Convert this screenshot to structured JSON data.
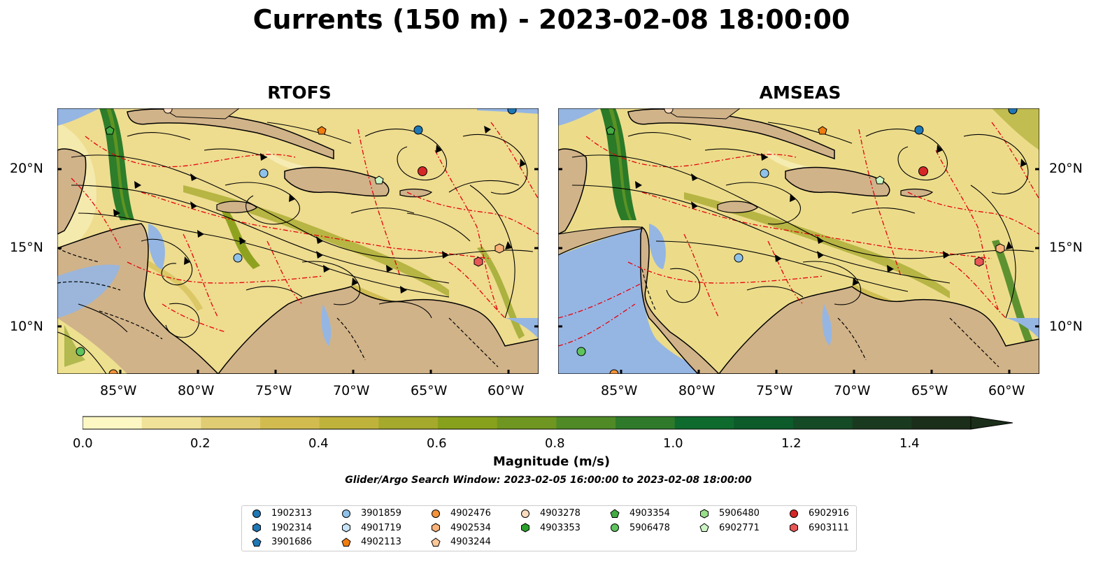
{
  "title": "Currents (150 m) - 2023-02-08 18:00:00",
  "panels": [
    {
      "title": "RTOFS"
    },
    {
      "title": "AMSEAS"
    }
  ],
  "lat_labels_left": [
    "20°N",
    "15°N",
    "10°N"
  ],
  "lat_labels_right": [
    "20°N",
    "15°N",
    "10°N"
  ],
  "lon_labels": [
    "85°W",
    "80°W",
    "75°W",
    "70°W",
    "65°W",
    "60°W"
  ],
  "colorbar": {
    "label": "Magnitude (m/s)",
    "ticks": [
      "0.0",
      "0.2",
      "0.4",
      "0.6",
      "0.8",
      "1.0",
      "1.2",
      "1.4"
    ],
    "colors": [
      "#fdf7c4",
      "#f1e29a",
      "#e0cc73",
      "#d2bc50",
      "#c0b33c",
      "#a5a92c",
      "#88a11c",
      "#6f9620",
      "#4f8a26",
      "#2f7a2a",
      "#0f6a2e",
      "#0d5a2a",
      "#154a26",
      "#1a3a20",
      "#1b2e1a"
    ]
  },
  "search_window": "Glider/Argo Search Window: 2023-02-05 16:00:00 to 2023-02-08 18:00:00",
  "colors": {
    "land": "#d1b389",
    "ocean": "#95b6e3",
    "eez": "#e8000b"
  },
  "legend": [
    {
      "label": "1902313",
      "shape": "circle",
      "color": "#1f77b4"
    },
    {
      "label": "1902314",
      "shape": "hexagon",
      "color": "#1f77b4"
    },
    {
      "label": "3901686",
      "shape": "pentagon",
      "color": "#1f77b4"
    },
    {
      "label": "3901859",
      "shape": "circle",
      "color": "#8fc2ea"
    },
    {
      "label": "4901719",
      "shape": "hexagon",
      "color": "#c6e3f7"
    },
    {
      "label": "4902113",
      "shape": "pentagon",
      "color": "#f07d0f"
    },
    {
      "label": "4902476",
      "shape": "circle",
      "color": "#f4933a"
    },
    {
      "label": "4902534",
      "shape": "hexagon",
      "color": "#f9b27a"
    },
    {
      "label": "4903244",
      "shape": "pentagon",
      "color": "#fcc797"
    },
    {
      "label": "4903278",
      "shape": "circle",
      "color": "#fcdcc0"
    },
    {
      "label": "4903353",
      "shape": "hexagon",
      "color": "#2ca02c"
    },
    {
      "label": "4903354",
      "shape": "pentagon",
      "color": "#43ab43"
    },
    {
      "label": "5906478",
      "shape": "circle",
      "color": "#5ec45e"
    },
    {
      "label": "5906480",
      "shape": "hexagon",
      "color": "#98df8a"
    },
    {
      "label": "6902771",
      "shape": "pentagon",
      "color": "#ccf5c4"
    },
    {
      "label": "6902916",
      "shape": "circle",
      "color": "#d62728"
    },
    {
      "label": "6903111",
      "shape": "hexagon",
      "color": "#e85656"
    }
  ]
}
